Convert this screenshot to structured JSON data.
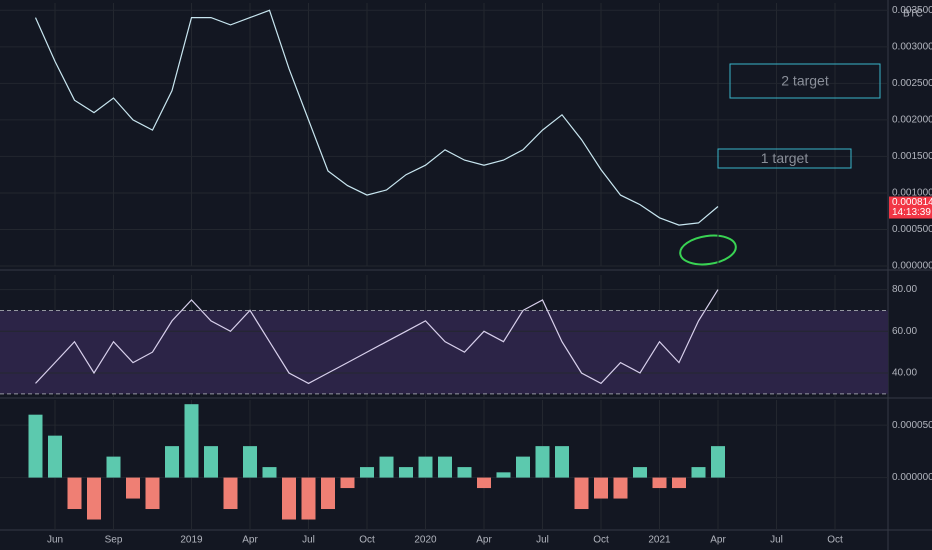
{
  "chart_data": [
    {
      "type": "line",
      "values": [
        0.0034,
        0.0028,
        0.00227,
        0.0021,
        0.0023,
        0.002,
        0.00186,
        0.0024,
        0.0034,
        0.0034,
        0.0033,
        0.0034,
        0.0035,
        0.0027,
        0.002,
        0.0013,
        0.0011,
        0.00097,
        0.00104,
        0.00125,
        0.00138,
        0.00159,
        0.00145,
        0.00138,
        0.00145,
        0.00159,
        0.00186,
        0.00207,
        0.00173,
        0.00132,
        0.00097,
        0.00084,
        0.00066,
        0.00056,
        0.00059,
        0.000814,
        null,
        null,
        null,
        null,
        null,
        null,
        null
      ],
      "color": "#c8e6f0",
      "ylim": [
        0,
        0.0036
      ],
      "yticks": [
        {
          "value": 0,
          "label": "0.000000"
        },
        {
          "value": 0.0005,
          "label": "0.000500"
        },
        {
          "value": 0.001,
          "label": "0.001000"
        },
        {
          "value": 0.0015,
          "label": "0.001500"
        },
        {
          "value": 0.002,
          "label": "0.002000"
        },
        {
          "value": 0.0025,
          "label": "0.002500"
        },
        {
          "value": 0.003,
          "label": "0.003000"
        },
        {
          "value": 0.0035,
          "label": "0.003500"
        }
      ],
      "grid": true,
      "currency": "BTC",
      "countdown": "14:13:39",
      "last_color": "#f23645",
      "annotations": [
        "2 target",
        "1 target"
      ]
    },
    {
      "type": "line",
      "values": [
        35,
        45,
        55,
        40,
        55,
        45,
        50,
        65,
        75,
        65,
        60,
        70,
        55,
        40,
        35,
        40,
        45,
        50,
        55,
        60,
        65,
        55,
        50,
        60,
        55,
        70,
        75,
        55,
        40,
        35,
        45,
        40,
        55,
        45,
        65,
        80,
        null,
        null,
        null,
        null,
        null,
        null,
        null
      ],
      "color": "#d8d0ec",
      "ylim": [
        28,
        87
      ],
      "yticks": [
        {
          "value": 40,
          "label": "40.00"
        },
        {
          "value": 60,
          "label": "60.00"
        },
        {
          "value": 80,
          "label": "80.00"
        }
      ],
      "band": [
        30,
        70
      ],
      "band_color": "#2c2447",
      "grid": true
    },
    {
      "type": "bar",
      "categories": [
        null,
        "Jun",
        null,
        null,
        "Sep",
        null,
        null,
        null,
        "2019",
        null,
        null,
        "Apr",
        null,
        null,
        "Jul",
        null,
        null,
        "Oct",
        null,
        null,
        "2020",
        null,
        null,
        "Apr",
        null,
        null,
        "Jul",
        null,
        null,
        "Oct",
        null,
        null,
        "2021",
        null,
        null,
        "Apr",
        null,
        null,
        "Jul",
        null,
        null,
        "Oct",
        null
      ],
      "values": [
        6e-05,
        4e-05,
        -3e-05,
        -4e-05,
        2e-05,
        -2e-05,
        -3e-05,
        3e-05,
        7e-05,
        3e-05,
        -3e-05,
        3e-05,
        1e-05,
        -4e-05,
        -4e-05,
        -3e-05,
        -1e-05,
        1e-05,
        2e-05,
        1e-05,
        2e-05,
        2e-05,
        1e-05,
        -1e-05,
        5e-06,
        2e-05,
        3e-05,
        3e-05,
        -3e-05,
        -2e-05,
        -2e-05,
        1e-05,
        -1e-05,
        -1e-05,
        1e-05,
        3e-05,
        null,
        null,
        null,
        null,
        null,
        null,
        null
      ],
      "colors": {
        "positive": "#5cc9ae",
        "negative": "#ef7f74"
      },
      "ylim": [
        -5e-05,
        7.4e-05
      ],
      "yticks": [
        {
          "value": 0,
          "label": "0.000000"
        },
        {
          "value": 5e-05,
          "label": "0.000050"
        }
      ],
      "grid": true
    }
  ]
}
